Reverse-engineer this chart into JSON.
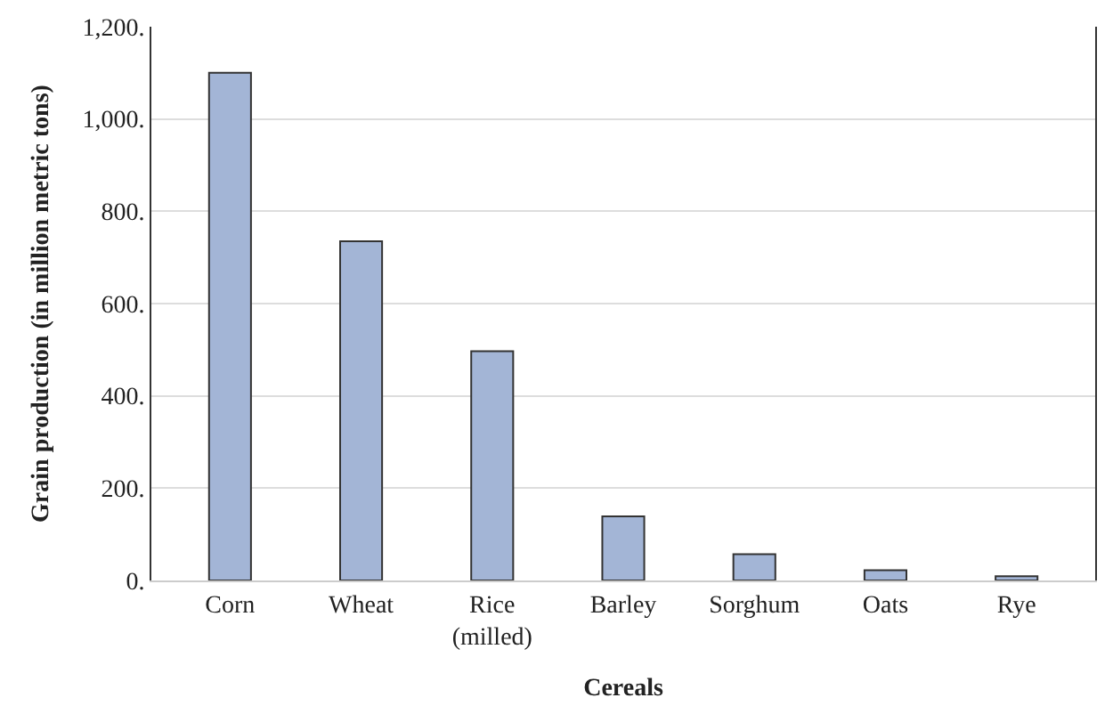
{
  "chart_data": {
    "type": "bar",
    "xlabel": "Cereals",
    "ylabel": "Grain production (in million metric tons)",
    "categories": [
      "Corn",
      "Wheat",
      "Rice\n(milled)",
      "Barley",
      "Sorghum",
      "Oats",
      "Rye"
    ],
    "values": [
      1100,
      735,
      497,
      139,
      57,
      22,
      9
    ],
    "color": "#a3b5d6",
    "ylim": [
      0,
      1200
    ],
    "yticks": [
      {
        "value": 0,
        "label": "0."
      },
      {
        "value": 200,
        "label": "200."
      },
      {
        "value": 400,
        "label": "400."
      },
      {
        "value": 600,
        "label": "600."
      },
      {
        "value": 800,
        "label": "800."
      },
      {
        "value": 1000,
        "label": "1,000."
      },
      {
        "value": 1200,
        "label": "1,200."
      }
    ],
    "grid": "y"
  }
}
